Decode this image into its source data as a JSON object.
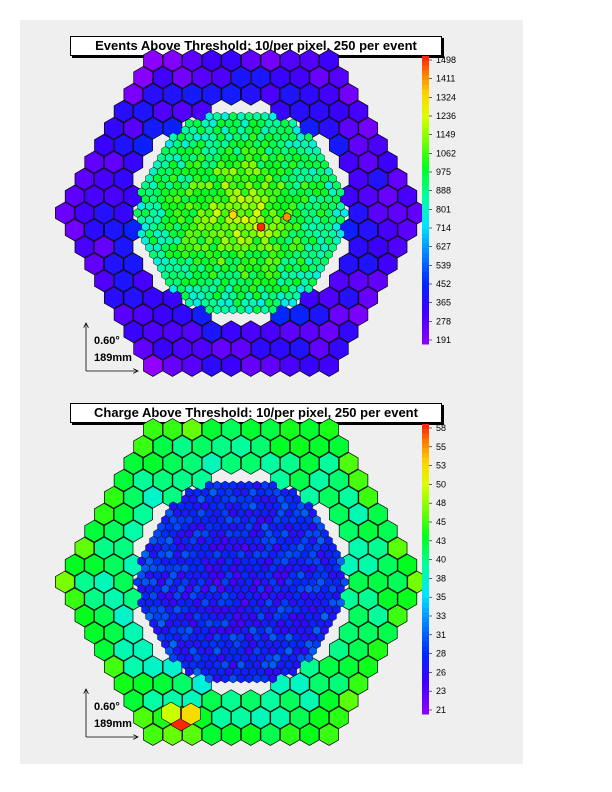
{
  "chart_data": [
    {
      "type": "heatmap",
      "title": "Events Above Threshold: 10/per pixel, 250 per event",
      "colorbar": {
        "min": 191,
        "max": 1498,
        "labels": [
          "1498",
          "1411",
          "1324",
          "1236",
          "1149",
          "1062",
          "975",
          "888",
          "801",
          "714",
          "627",
          "539",
          "452",
          "365",
          "278",
          "191"
        ]
      },
      "outer_ring_value": 400,
      "outer_edge_value": 260,
      "inner_center_value": 1200,
      "inner_edge_value": 850,
      "hot_spot_values": [
        1498,
        1411,
        1324
      ],
      "scale": {
        "angle": "0.60°",
        "length": "189mm"
      }
    },
    {
      "type": "heatmap",
      "title": "Charge Above Threshold: 10/per pixel, 250 per event",
      "colorbar": {
        "min": 21,
        "max": 58,
        "labels": [
          "58",
          "55",
          "53",
          "50",
          "48",
          "45",
          "43",
          "40",
          "38",
          "35",
          "33",
          "31",
          "28",
          "26",
          "23",
          "21"
        ]
      },
      "outer_ring_value": 40,
      "outer_edge_value": 44,
      "inner_center_value": 27,
      "inner_edge_value": 29,
      "hot_spot_values": [
        58,
        53,
        50
      ],
      "scale": {
        "angle": "0.60°",
        "length": "189mm"
      }
    }
  ]
}
